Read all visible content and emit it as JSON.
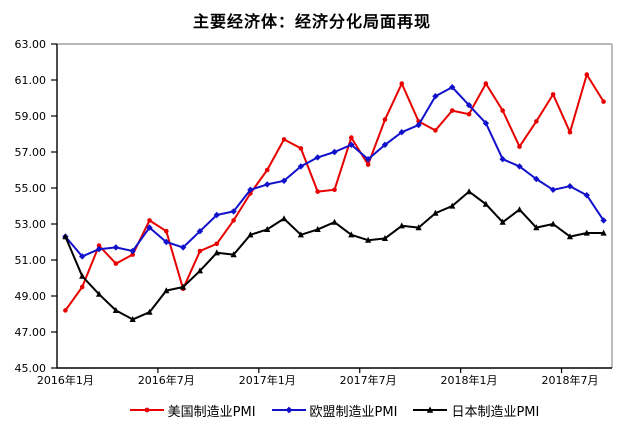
{
  "title": "主要经济体：经济分化局面再现",
  "colors": {
    "us": "#e80000",
    "eu": "#1111cc",
    "japan": "#000000",
    "axis": "#000000",
    "frame_gray": "#a0a0a0"
  },
  "chart_data": {
    "type": "line",
    "title": "主要经济体：经济分化局面再现",
    "xlabel": "",
    "ylabel": "",
    "ylim": [
      45,
      63
    ],
    "ytick_step": 2,
    "grid": false,
    "legend_position": "bottom",
    "categories": [
      "2016年1月",
      "2016年2月",
      "2016年3月",
      "2016年4月",
      "2016年5月",
      "2016年6月",
      "2016年7月",
      "2016年8月",
      "2016年9月",
      "2016年10月",
      "2016年11月",
      "2016年12月",
      "2017年1月",
      "2017年2月",
      "2017年3月",
      "2017年4月",
      "2017年5月",
      "2017年6月",
      "2017年7月",
      "2017年8月",
      "2017年9月",
      "2017年10月",
      "2017年11月",
      "2017年12月",
      "2018年1月",
      "2018年2月",
      "2018年3月",
      "2018年4月",
      "2018年5月",
      "2018年6月",
      "2018年7月",
      "2018年8月",
      "2018年9月"
    ],
    "series": [
      {
        "key": "us",
        "name": "美国制造业PMI",
        "color": "#e80000",
        "marker": "dot",
        "values": [
          48.2,
          49.5,
          51.8,
          50.8,
          51.3,
          53.2,
          52.6,
          49.4,
          51.5,
          51.9,
          53.2,
          54.7,
          56.0,
          57.7,
          57.2,
          54.8,
          54.9,
          57.8,
          56.3,
          58.8,
          60.8,
          58.7,
          58.2,
          59.3,
          59.1,
          60.8,
          59.3,
          57.3,
          58.7,
          60.2,
          58.1,
          61.3,
          59.8
        ]
      },
      {
        "key": "eu",
        "name": "欧盟制造业PMI",
        "color": "#1111cc",
        "marker": "diamond",
        "values": [
          52.3,
          51.2,
          51.6,
          51.7,
          51.5,
          52.8,
          52.0,
          51.7,
          52.6,
          53.5,
          53.7,
          54.9,
          55.2,
          55.4,
          56.2,
          56.7,
          57.0,
          57.4,
          56.6,
          57.4,
          58.1,
          58.5,
          60.1,
          60.6,
          59.6,
          58.6,
          56.6,
          56.2,
          55.5,
          54.9,
          55.1,
          54.6,
          53.2
        ]
      },
      {
        "key": "japan",
        "name": "日本制造业PMI",
        "color": "#000000",
        "marker": "triangle",
        "values": [
          52.3,
          50.1,
          49.1,
          48.2,
          47.7,
          48.1,
          49.3,
          49.5,
          50.4,
          51.4,
          51.3,
          52.4,
          52.7,
          53.3,
          52.4,
          52.7,
          53.1,
          52.4,
          52.1,
          52.2,
          52.9,
          52.8,
          53.6,
          54.0,
          54.8,
          54.1,
          53.1,
          53.8,
          52.8,
          53.0,
          52.3,
          52.5,
          52.5
        ]
      }
    ],
    "ytick_labels": [
      "63.00",
      "61.00",
      "59.00",
      "57.00",
      "55.00",
      "53.00",
      "51.00",
      "49.00",
      "47.00",
      "45.00"
    ],
    "ytick_values": [
      63,
      61,
      59,
      57,
      55,
      53,
      51,
      49,
      47,
      45
    ],
    "xticks": [
      {
        "label": "2016年1月",
        "month_index": 0
      },
      {
        "label": "2016年7月",
        "month_index": 6
      },
      {
        "label": "2017年1月",
        "month_index": 12
      },
      {
        "label": "2017年7月",
        "month_index": 18
      },
      {
        "label": "2018年1月",
        "month_index": 24
      },
      {
        "label": "2018年7月",
        "month_index": 30
      }
    ]
  }
}
